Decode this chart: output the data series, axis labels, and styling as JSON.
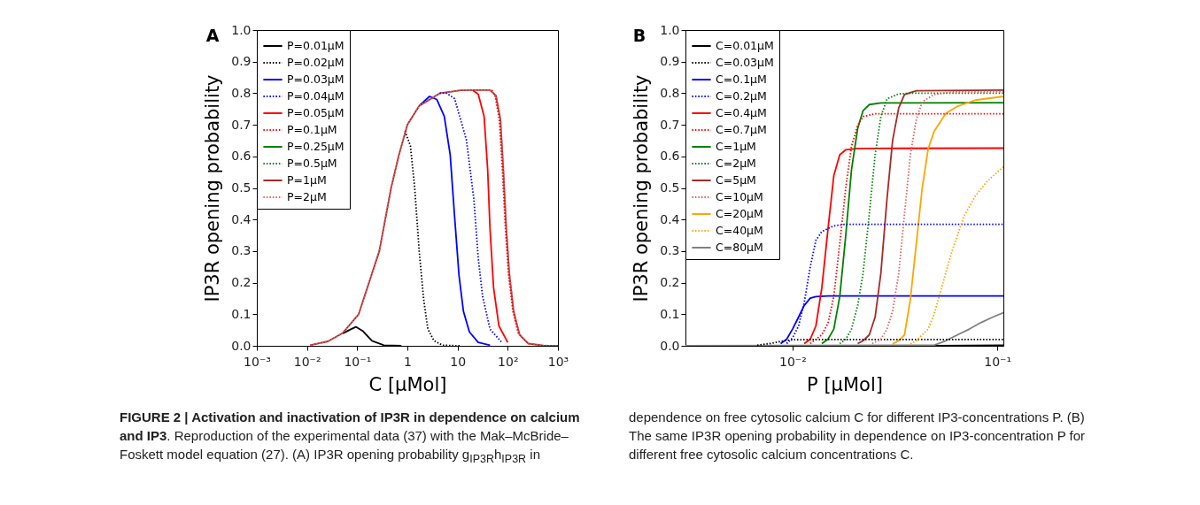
{
  "chart_data": [
    {
      "type": "line",
      "title": "A",
      "xlabel": "C [μMol]",
      "ylabel": "IP3R opening probability",
      "log": "x",
      "legend": "top left",
      "xlim": [
        0.001,
        1000
      ],
      "xticks": [
        {
          "value": 0.001,
          "label": "10⁻³"
        },
        {
          "value": 0.01,
          "label": "10⁻²"
        },
        {
          "value": 0.1,
          "label": "10⁻¹"
        },
        1,
        10,
        {
          "value": 100,
          "label": "10²"
        },
        {
          "value": 1000,
          "label": "10³"
        }
      ],
      "ylim": [
        0,
        1
      ],
      "yticks": [
        {
          "value": 0,
          "label": "0.0"
        },
        {
          "value": 0.1,
          "label": "0.1"
        },
        {
          "value": 0.2,
          "label": "0.2"
        },
        {
          "value": 0.3,
          "label": "0.3"
        },
        {
          "value": 0.4,
          "label": "0.4"
        },
        {
          "value": 0.5,
          "label": "0.5"
        },
        {
          "value": 0.6,
          "label": "0.6"
        },
        {
          "value": 0.7,
          "label": "0.7"
        },
        {
          "value": 0.8,
          "label": "0.8"
        },
        {
          "value": 0.9,
          "label": "0.9"
        },
        {
          "value": 1,
          "label": "1.0"
        }
      ],
      "series": [
        {
          "name": "P=0.01μM",
          "color": "#000000",
          "line_style": "solid",
          "x": [
            0.051,
            0.076,
            0.094,
            0.131,
            0.197,
            0.339,
            0.76
          ],
          "values": [
            0.039,
            0.053,
            0.06,
            0.046,
            0.016,
            0.002,
            0
          ]
        },
        {
          "name": "P=0.02μM",
          "color": "#000000",
          "line_style": "dotted",
          "x": [
            0.897,
            1.15,
            1.4,
            1.72,
            2.11,
            2.56,
            3.39,
            5.0,
            11.5
          ],
          "values": [
            0.68,
            0.633,
            0.5,
            0.3,
            0.147,
            0.053,
            0.016,
            0.002,
            0
          ]
        },
        {
          "name": "P=0.03μM",
          "color": "#0000ff",
          "line_style": "solid",
          "x": [
            1.72,
            2.76,
            3.87,
            5.43,
            7.13,
            8.73,
            10.7,
            13.1,
            17.2,
            25.8,
            44.3
          ],
          "values": [
            0.76,
            0.79,
            0.78,
            0.727,
            0.605,
            0.409,
            0.222,
            0.109,
            0.044,
            0.011,
            0.002
          ]
        },
        {
          "name": "P=0.04μM",
          "color": "#0000ff",
          "line_style": "dotted",
          "x": [
            4.43,
            5.8,
            8.73,
            15,
            21.1,
            25.8,
            31.6,
            44.3,
            76
          ],
          "values": [
            0.8,
            0.802,
            0.783,
            0.652,
            0.465,
            0.278,
            0.156,
            0.053,
            0.011
          ]
        },
        {
          "name": "P=0.05μM",
          "color": "#ff0000",
          "line_style": "solid",
          "x": [
            19.7,
            25.8,
            33.8,
            39.8,
            44.3,
            52.2,
            66.7,
            100
          ],
          "values": [
            0.81,
            0.797,
            0.727,
            0.558,
            0.371,
            0.184,
            0.063,
            0.011
          ]
        },
        {
          "name": "P=0.1μM",
          "color": "#ff0000",
          "line_style": "dotted",
          "x": [
            48,
            56,
            68,
            78,
            90,
            103,
            127,
            165
          ],
          "values": [
            0.81,
            0.792,
            0.717,
            0.558,
            0.371,
            0.231,
            0.109,
            0.035
          ]
        },
        {
          "name": "P=0.25μM",
          "color": "#008000",
          "line_style": "solid",
          "x": [
            null
          ],
          "values": [
            null
          ]
        },
        {
          "name": "P=0.5μM",
          "color": "#008000",
          "line_style": "dotted",
          "x": [
            null
          ],
          "values": [
            null
          ]
        },
        {
          "name": "P=1μM",
          "color": "#a52a2a",
          "line_style": "solid",
          "x": [
            0.0115,
            0.026,
            0.051,
            0.107,
            0.276,
            0.474,
            0.667,
            1.0,
            1.72,
            4.43,
            11.5,
            22.5,
            44.3,
            58.2,
            71.3,
            81.6,
            93.4,
            107,
            131,
            172,
            257,
            508,
            1000
          ],
          "values": [
            0.002,
            0.014,
            0.04,
            0.1,
            0.3,
            0.5,
            0.6,
            0.7,
            0.76,
            0.8,
            0.809,
            0.81,
            0.81,
            0.792,
            0.717,
            0.558,
            0.371,
            0.231,
            0.109,
            0.035,
            0.007,
            0.001,
            0
          ]
        },
        {
          "name": "P=2μM",
          "color": "#e06060",
          "line_style": "dotted",
          "x": [
            0.0115,
            0.026,
            0.051,
            0.107,
            0.276,
            0.474,
            0.667,
            1.0,
            1.72,
            4.43,
            11.5,
            22.5,
            44.3,
            59,
            72,
            82,
            94,
            108,
            132,
            173,
            258,
            510,
            1000
          ],
          "values": [
            0.002,
            0.014,
            0.04,
            0.1,
            0.3,
            0.5,
            0.6,
            0.7,
            0.76,
            0.8,
            0.809,
            0.81,
            0.81,
            0.792,
            0.717,
            0.558,
            0.371,
            0.231,
            0.109,
            0.035,
            0.007,
            0.001,
            0
          ]
        }
      ],
      "annotations": [
        "FIGURE 2 | Activation and inactivation of IP3R in dependence on calcium and IP3",
        ". Reproduction of the experimental data (37) with the Mak–McBride–Foskett model equation (27). (A) IP3R opening probability g$_{IP3R}$h$_{IP3R}$ in dependence on free cytosolic calcium C for different IP3-concentrations P. (B) The same IP3R opening probability in dependence on IP3-concentration P for different free cytosolic calcium concentrations C."
      ]
    },
    {
      "type": "line",
      "title": "B",
      "xlabel": "P [μMol]",
      "ylabel": "IP3R opening probability",
      "log": "x",
      "legend": "top left",
      "xlim": [
        0.003,
        0.107
      ],
      "xticks": [
        {
          "value": 0.01,
          "label": "10⁻²"
        },
        {
          "value": 0.1,
          "label": "10⁻¹"
        }
      ],
      "ylim": [
        0,
        1
      ],
      "yticks": [
        {
          "value": 0,
          "label": "0.0"
        },
        {
          "value": 0.1,
          "label": "0.1"
        },
        {
          "value": 0.2,
          "label": "0.2"
        },
        {
          "value": 0.3,
          "label": "0.3"
        },
        {
          "value": 0.4,
          "label": "0.4"
        },
        {
          "value": 0.5,
          "label": "0.5"
        },
        {
          "value": 0.6,
          "label": "0.6"
        },
        {
          "value": 0.7,
          "label": "0.7"
        },
        {
          "value": 0.8,
          "label": "0.8"
        },
        {
          "value": 0.9,
          "label": "0.9"
        },
        {
          "value": 1,
          "label": "1.0"
        }
      ],
      "series": [
        {
          "name": "C=0.01μM",
          "color": "#000000",
          "line_style": "solid",
          "x": [
            0.0491,
            0.107
          ],
          "values": [
            0,
            0.002
          ]
        },
        {
          "name": "C=0.03μM",
          "color": "#000000",
          "line_style": "dotted",
          "x": [
            0.00672,
            0.00793,
            0.00875,
            0.01,
            0.0122,
            0.107
          ],
          "values": [
            0.002,
            0.008,
            0.014,
            0.019,
            0.02,
            0.02
          ]
        },
        {
          "name": "C=0.1μM",
          "color": "#0000ff",
          "line_style": "solid",
          "x": [
            0.00875,
            0.00936,
            0.01,
            0.0107,
            0.0114,
            0.0122,
            0.013,
            0.0149,
            0.107
          ],
          "values": [
            0.007,
            0.021,
            0.053,
            0.091,
            0.128,
            0.151,
            0.156,
            0.158,
            0.158
          ]
        },
        {
          "name": "C=0.2μM",
          "color": "#0000ff",
          "line_style": "dotted",
          "x": [
            0.00936,
            0.01,
            0.0107,
            0.0114,
            0.0122,
            0.013,
            0.0139,
            0.0159,
            0.0182,
            0.107
          ],
          "values": [
            0.007,
            0.025,
            0.063,
            0.137,
            0.25,
            0.334,
            0.362,
            0.38,
            0.385,
            0.385
          ]
        },
        {
          "name": "C=0.4μM",
          "color": "#ff0000",
          "line_style": "solid",
          "x": [
            0.0114,
            0.0122,
            0.013,
            0.0139,
            0.0149,
            0.0159,
            0.017,
            0.0182,
            0.0208,
            0.107
          ],
          "values": [
            0.007,
            0.021,
            0.063,
            0.184,
            0.371,
            0.539,
            0.605,
            0.621,
            0.625,
            0.626
          ]
        },
        {
          "name": "C=0.7μM",
          "color": "#ff0000",
          "line_style": "dotted",
          "x": [
            0.0122,
            0.0139,
            0.0149,
            0.0159,
            0.017,
            0.0182,
            0.0194,
            0.0208,
            0.0221,
            0.0253,
            0.107
          ],
          "values": [
            0.007,
            0.035,
            0.072,
            0.156,
            0.324,
            0.502,
            0.633,
            0.698,
            0.726,
            0.735,
            0.735
          ]
        },
        {
          "name": "C=1μM",
          "color": "#008000",
          "line_style": "solid",
          "x": [
            0.0139,
            0.0149,
            0.0159,
            0.017,
            0.0182,
            0.0194,
            0.0208,
            0.0221,
            0.0237,
            0.027,
            0.107
          ],
          "values": [
            0.007,
            0.021,
            0.053,
            0.156,
            0.352,
            0.558,
            0.689,
            0.745,
            0.764,
            0.769,
            0.77
          ]
        },
        {
          "name": "C=2μM",
          "color": "#008000",
          "line_style": "dotted",
          "x": [
            0.017,
            0.0182,
            0.0194,
            0.0208,
            0.0221,
            0.0237,
            0.0253,
            0.027,
            0.0289,
            0.033,
            0.0376,
            0.107
          ],
          "values": [
            0.007,
            0.021,
            0.053,
            0.128,
            0.231,
            0.418,
            0.605,
            0.726,
            0.782,
            0.798,
            0.8,
            0.8
          ]
        },
        {
          "name": "C=5μM",
          "color": "#a52a2a",
          "line_style": "solid",
          "x": [
            0.0208,
            0.0221,
            0.0237,
            0.0253,
            0.027,
            0.0289,
            0.0308,
            0.033,
            0.0352,
            0.0402,
            0.107
          ],
          "values": [
            0.007,
            0.016,
            0.035,
            0.091,
            0.231,
            0.464,
            0.651,
            0.754,
            0.796,
            0.808,
            0.81
          ]
        },
        {
          "name": "C=10μM",
          "color": "#e06060",
          "line_style": "dotted",
          "x": [
            0.0245,
            0.027,
            0.0289,
            0.0308,
            0.033,
            0.0352,
            0.0376,
            0.0402,
            0.043,
            0.0491,
            0.0598,
            0.107
          ],
          "values": [
            0.007,
            0.021,
            0.053,
            0.109,
            0.231,
            0.418,
            0.605,
            0.717,
            0.773,
            0.796,
            0.804,
            0.805
          ]
        },
        {
          "name": "C=20μM",
          "color": "#ffa500",
          "line_style": "solid",
          "x": [
            0.0308,
            0.033,
            0.0352,
            0.0376,
            0.0402,
            0.043,
            0.0459,
            0.0491,
            0.056,
            0.064,
            0.078,
            0.107
          ],
          "values": [
            0.006,
            0.016,
            0.035,
            0.147,
            0.324,
            0.502,
            0.623,
            0.679,
            0.736,
            0.759,
            0.778,
            0.79
          ]
        },
        {
          "name": "C=40μM",
          "color": "#ffa500",
          "line_style": "dotted",
          "x": [
            0.0376,
            0.0402,
            0.0459,
            0.0491,
            0.0524,
            0.056,
            0.0598,
            0.064,
            0.0684,
            0.078,
            0.0891,
            0.107
          ],
          "values": [
            0.006,
            0.016,
            0.053,
            0.1,
            0.165,
            0.231,
            0.296,
            0.352,
            0.408,
            0.474,
            0.521,
            0.567
          ]
        },
        {
          "name": "C=80μM",
          "color": "#808080",
          "line_style": "solid",
          "x": [
            0.003,
            0.0491,
            0.056,
            0.064,
            0.073,
            0.0834,
            0.0951,
            0.107
          ],
          "values": [
            0,
            0.002,
            0.016,
            0.035,
            0.053,
            0.074,
            0.091,
            0.105
          ]
        }
      ]
    }
  ]
}
